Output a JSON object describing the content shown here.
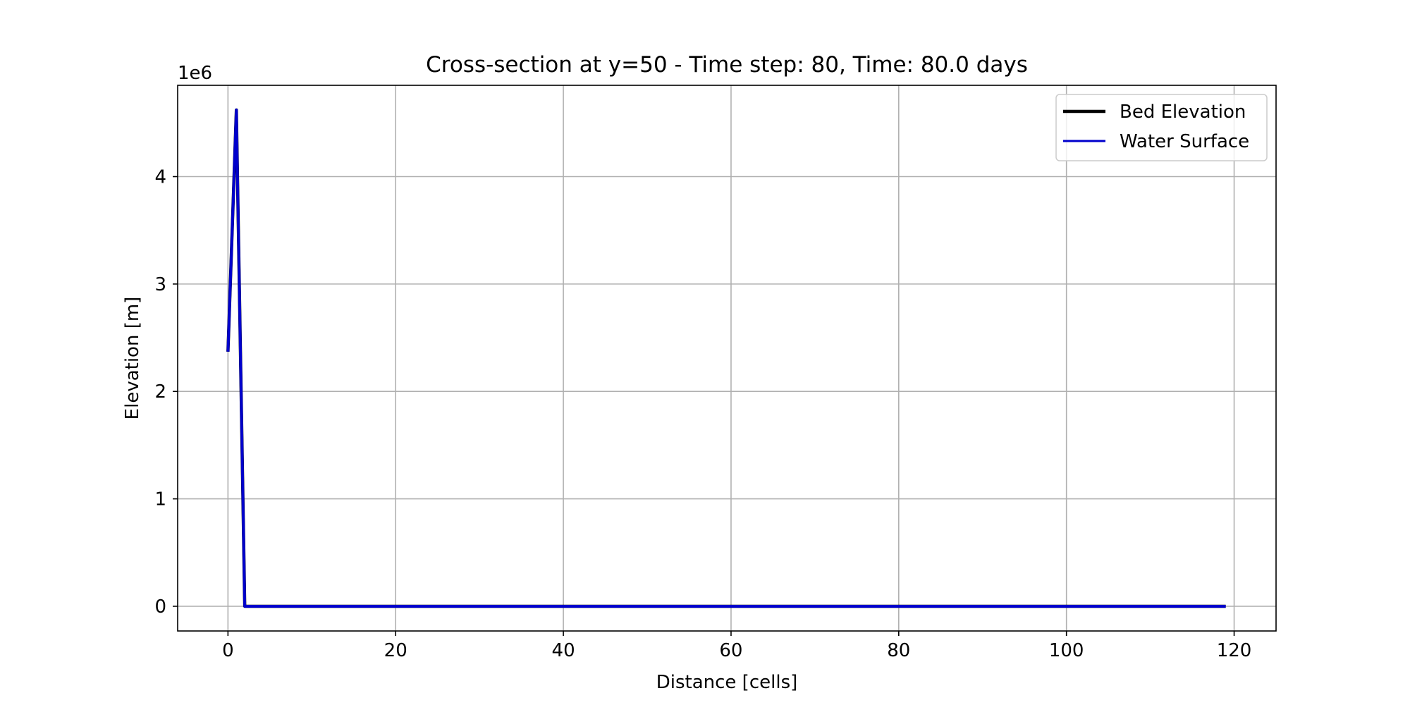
{
  "chart_data": {
    "type": "line",
    "title": "Cross-section at y=50 - Time step: 80, Time: 80.0 days",
    "xlabel": "Distance [cells]",
    "ylabel": "Elevation [m]",
    "y_offset_text": "1e6",
    "xlim": [
      -6,
      125
    ],
    "ylim": [
      -230000,
      4850000
    ],
    "y_scale": 1000000,
    "xticks": [
      0,
      20,
      40,
      60,
      80,
      100,
      120
    ],
    "xtick_labels": [
      "0",
      "20",
      "40",
      "60",
      "80",
      "100",
      "120"
    ],
    "yticks": [
      0,
      1000000,
      2000000,
      3000000,
      4000000
    ],
    "ytick_labels": [
      "0",
      "1",
      "2",
      "3",
      "4"
    ],
    "grid": true,
    "legend_position": "top-right",
    "series": [
      {
        "name": "Bed Elevation",
        "color": "#000000",
        "x": [
          0,
          1,
          2,
          119
        ],
        "y": [
          2370000,
          4620000,
          0,
          0
        ]
      },
      {
        "name": "Water Surface",
        "color": "#0000cc",
        "x": [
          0,
          1,
          2,
          119
        ],
        "y": [
          2370000,
          4620000,
          0,
          0
        ]
      }
    ]
  }
}
